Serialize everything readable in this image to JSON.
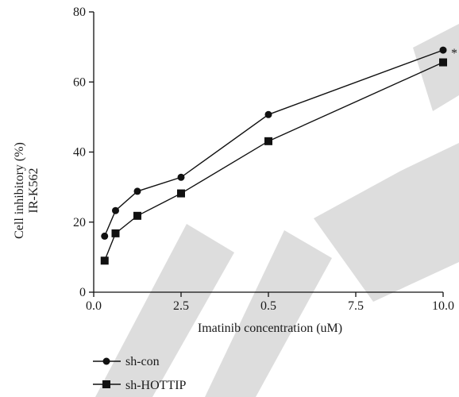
{
  "watermark": "RETRACTED",
  "chart_data": {
    "type": "line",
    "title": "",
    "xlabel": "Imatinib concentration (uM)",
    "ylabel_lines": [
      "Cell inhibitory (%)",
      "IR-K562"
    ],
    "x_ticks": [
      "0.0",
      "2.5",
      "0.5",
      "7.5",
      "10.0"
    ],
    "y_ticks": [
      "0",
      "20",
      "40",
      "60",
      "80"
    ],
    "xlim": [
      0,
      10
    ],
    "ylim": [
      0,
      80
    ],
    "annotation": "*",
    "legend_position": "bottom-left",
    "series": [
      {
        "name": "sh-con",
        "marker": "circle",
        "x": [
          0.3125,
          0.625,
          1.25,
          2.5,
          5,
          10
        ],
        "y": [
          16,
          23.3,
          28.8,
          32.8,
          50.7,
          69.1
        ]
      },
      {
        "name": "sh-HOTTIP",
        "marker": "square",
        "x": [
          0.3125,
          0.625,
          1.25,
          2.5,
          5,
          10
        ],
        "y": [
          9,
          16.8,
          21.8,
          28.2,
          43.1,
          65.6
        ]
      }
    ]
  }
}
